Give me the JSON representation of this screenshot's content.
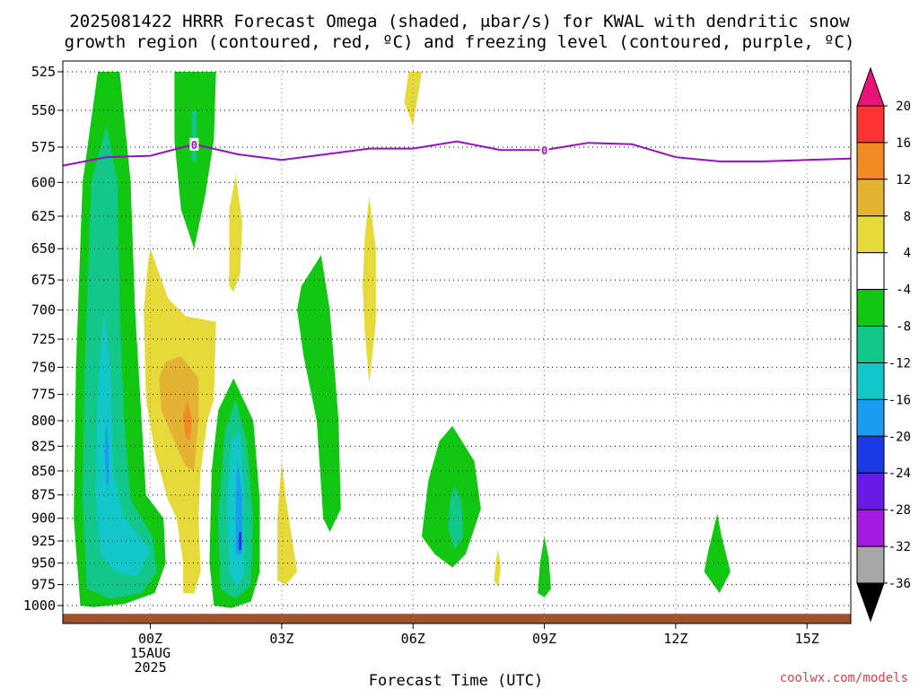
{
  "title": {
    "line1": "2025081422 HRRR Forecast Omega (shaded, μbar/s) for KWAL with dendritic snow",
    "line2": "growth region (contoured, red, ºC) and freezing level (contoured, purple, ºC)"
  },
  "credit": {
    "text": "coolwx.com/models",
    "color": "#d2434b"
  },
  "chart_data": {
    "type": "heatmap",
    "title": "2025081422 HRRR Forecast Omega (shaded, μbar/s) for KWAL with dendritic snow growth region (contoured, red, ºC) and freezing level (contoured, purple, ºC)",
    "xlabel": "Forecast Time (UTC)",
    "ylabel": "",
    "x_unit": "hours from 00Z 15AUG 2025",
    "xlim": [
      -2,
      16
    ],
    "ylim": [
      1000,
      525
    ],
    "y_scale": "log pressure (hPa)",
    "grid": true,
    "x_ticks": [
      {
        "value": 0,
        "label": "00Z",
        "sublabels": [
          "15AUG",
          "2025"
        ]
      },
      {
        "value": 3,
        "label": "03Z"
      },
      {
        "value": 6,
        "label": "06Z"
      },
      {
        "value": 9,
        "label": "09Z"
      },
      {
        "value": 12,
        "label": "12Z"
      },
      {
        "value": 15,
        "label": "15Z"
      }
    ],
    "y_ticks": [
      525,
      550,
      575,
      600,
      625,
      650,
      675,
      700,
      725,
      750,
      775,
      800,
      825,
      850,
      875,
      900,
      925,
      950,
      975,
      1000
    ],
    "colorbar": {
      "labels": [
        "20",
        "16",
        "12",
        "8",
        "4",
        "-4",
        "-8",
        "-12",
        "-16",
        "-20",
        "-24",
        "-28",
        "-32",
        "-36"
      ],
      "bands": [
        {
          "min": 16,
          "max": 20,
          "color": "#ff3333"
        },
        {
          "min": 12,
          "max": 16,
          "color": "#f08a22"
        },
        {
          "min": 8,
          "max": 12,
          "color": "#e4b232"
        },
        {
          "min": 4,
          "max": 8,
          "color": "#e6da3a"
        },
        {
          "min": -4,
          "max": 4,
          "color": "#ffffff"
        },
        {
          "min": -8,
          "max": -4,
          "color": "#11c711"
        },
        {
          "min": -12,
          "max": -8,
          "color": "#11c78a"
        },
        {
          "min": -16,
          "max": -12,
          "color": "#11c7c7"
        },
        {
          "min": -20,
          "max": -16,
          "color": "#1a9df0"
        },
        {
          "min": -24,
          "max": -20,
          "color": "#1a3ae6"
        },
        {
          "min": -28,
          "max": -24,
          "color": "#6a1ae6"
        },
        {
          "min": -32,
          "max": -28,
          "color": "#a31ae0"
        },
        {
          "min": -36,
          "max": -32,
          "color": "#a6a6a6"
        }
      ],
      "top_extend_color": "#e8147a",
      "bottom_extend_color": "#000000"
    },
    "freezing_level": {
      "color": "#9a0fc8",
      "label": "0",
      "label_points": [
        [
          1,
          573
        ],
        [
          9,
          577
        ]
      ],
      "points": [
        [
          -2,
          588
        ],
        [
          -1.5,
          585
        ],
        [
          -1,
          582
        ],
        [
          0,
          581
        ],
        [
          1,
          573
        ],
        [
          2,
          580
        ],
        [
          3,
          584
        ],
        [
          4,
          580
        ],
        [
          5,
          576
        ],
        [
          6,
          576
        ],
        [
          7,
          571
        ],
        [
          8,
          577
        ],
        [
          9,
          577
        ],
        [
          10,
          572
        ],
        [
          11,
          573
        ],
        [
          12,
          582
        ],
        [
          13,
          585
        ],
        [
          14,
          585
        ],
        [
          15,
          584
        ],
        [
          16,
          583
        ]
      ]
    },
    "ground": {
      "color": "#a0522d",
      "pressure_top": 1010
    },
    "omega_regions": [
      {
        "value": -6,
        "points": [
          [
            -1.6,
            1000
          ],
          [
            -1.75,
            900
          ],
          [
            -1.7,
            750
          ],
          [
            -1.55,
            600
          ],
          [
            -1.2,
            525
          ],
          [
            -0.7,
            525
          ],
          [
            -0.45,
            600
          ],
          [
            -0.35,
            700
          ],
          [
            -0.2,
            800
          ],
          [
            -0.1,
            875
          ],
          [
            0.3,
            900
          ],
          [
            0.35,
            950
          ],
          [
            0.1,
            985
          ],
          [
            -0.6,
            998
          ],
          [
            -1.3,
            1002
          ]
        ]
      },
      {
        "value": -10,
        "points": [
          [
            -1.45,
            980
          ],
          [
            -1.55,
            880
          ],
          [
            -1.5,
            750
          ],
          [
            -1.35,
            600
          ],
          [
            -1.0,
            560
          ],
          [
            -0.75,
            600
          ],
          [
            -0.7,
            700
          ],
          [
            -0.6,
            800
          ],
          [
            -0.45,
            880
          ],
          [
            0.05,
            920
          ],
          [
            0.15,
            960
          ],
          [
            -0.2,
            985
          ],
          [
            -0.9,
            992
          ]
        ]
      },
      {
        "value": -14,
        "points": [
          [
            -1.15,
            940
          ],
          [
            -1.25,
            880
          ],
          [
            -1.2,
            760
          ],
          [
            -1.05,
            700
          ],
          [
            -0.9,
            760
          ],
          [
            -0.85,
            850
          ],
          [
            -0.6,
            900
          ],
          [
            0.0,
            935
          ],
          [
            -0.3,
            965
          ],
          [
            -0.8,
            960
          ]
        ]
      },
      {
        "value": -18,
        "points": [
          [
            -1.0,
            865
          ],
          [
            -1.05,
            830
          ],
          [
            -1.0,
            800
          ],
          [
            -0.95,
            830
          ],
          [
            -0.95,
            865
          ]
        ]
      },
      {
        "value": -6,
        "points": [
          [
            0.55,
            525
          ],
          [
            1.5,
            525
          ],
          [
            1.45,
            570
          ],
          [
            1.25,
            610
          ],
          [
            1.0,
            650
          ],
          [
            0.7,
            620
          ],
          [
            0.55,
            570
          ]
        ]
      },
      {
        "value": -10,
        "points": [
          [
            0.95,
            550
          ],
          [
            1.05,
            550
          ],
          [
            1.05,
            585
          ],
          [
            0.95,
            585
          ]
        ]
      },
      {
        "value": -6,
        "points": [
          [
            1.45,
            1000
          ],
          [
            1.35,
            950
          ],
          [
            1.4,
            850
          ],
          [
            1.55,
            790
          ],
          [
            1.9,
            760
          ],
          [
            2.35,
            800
          ],
          [
            2.5,
            880
          ],
          [
            2.5,
            960
          ],
          [
            2.3,
            995
          ],
          [
            1.85,
            1003
          ]
        ]
      },
      {
        "value": -10,
        "points": [
          [
            1.6,
            980
          ],
          [
            1.55,
            900
          ],
          [
            1.7,
            810
          ],
          [
            1.95,
            780
          ],
          [
            2.2,
            820
          ],
          [
            2.35,
            900
          ],
          [
            2.3,
            975
          ],
          [
            1.95,
            992
          ]
        ]
      },
      {
        "value": -14,
        "points": [
          [
            1.8,
            960
          ],
          [
            1.75,
            880
          ],
          [
            1.85,
            820
          ],
          [
            2.05,
            810
          ],
          [
            2.15,
            880
          ],
          [
            2.15,
            960
          ],
          [
            2.0,
            980
          ]
        ]
      },
      {
        "value": -18,
        "points": [
          [
            1.95,
            940
          ],
          [
            1.95,
            870
          ],
          [
            2.0,
            840
          ],
          [
            2.1,
            880
          ],
          [
            2.1,
            940
          ]
        ]
      },
      {
        "value": -22,
        "points": [
          [
            2.02,
            935
          ],
          [
            2.02,
            915
          ],
          [
            2.08,
            915
          ],
          [
            2.08,
            935
          ]
        ]
      },
      {
        "value": -6,
        "points": [
          [
            3.35,
            700
          ],
          [
            3.45,
            680
          ],
          [
            3.9,
            655
          ],
          [
            4.1,
            700
          ],
          [
            4.3,
            800
          ],
          [
            4.35,
            890
          ],
          [
            4.1,
            915
          ],
          [
            3.95,
            900
          ],
          [
            3.8,
            800
          ],
          [
            3.5,
            740
          ]
        ]
      },
      {
        "value": -6,
        "points": [
          [
            6.2,
            920
          ],
          [
            6.35,
            860
          ],
          [
            6.6,
            820
          ],
          [
            6.9,
            805
          ],
          [
            7.4,
            840
          ],
          [
            7.55,
            890
          ],
          [
            7.2,
            940
          ],
          [
            6.9,
            955
          ],
          [
            6.5,
            940
          ]
        ]
      },
      {
        "value": -10,
        "points": [
          [
            6.8,
            910
          ],
          [
            6.85,
            880
          ],
          [
            6.95,
            865
          ],
          [
            7.1,
            880
          ],
          [
            7.15,
            920
          ],
          [
            6.95,
            935
          ]
        ]
      },
      {
        "value": -6,
        "points": [
          [
            8.85,
            985
          ],
          [
            8.9,
            950
          ],
          [
            9.0,
            920
          ],
          [
            9.1,
            945
          ],
          [
            9.15,
            980
          ],
          [
            9.0,
            990
          ]
        ]
      },
      {
        "value": -6,
        "points": [
          [
            12.65,
            960
          ],
          [
            12.75,
            935
          ],
          [
            12.95,
            895
          ],
          [
            13.05,
            920
          ],
          [
            13.25,
            960
          ],
          [
            13.0,
            985
          ]
        ]
      },
      {
        "value": 6,
        "points": [
          [
            -0.15,
            700
          ],
          [
            -0.05,
            660
          ],
          [
            0.0,
            650
          ],
          [
            0.4,
            690
          ],
          [
            0.8,
            705
          ],
          [
            1.5,
            710
          ],
          [
            1.45,
            780
          ],
          [
            1.3,
            800
          ],
          [
            1.15,
            850
          ],
          [
            1.1,
            900
          ],
          [
            1.15,
            960
          ],
          [
            1.0,
            985
          ],
          [
            0.75,
            985
          ],
          [
            0.75,
            950
          ],
          [
            0.6,
            900
          ],
          [
            0.4,
            880
          ],
          [
            0.1,
            830
          ],
          [
            -0.1,
            780
          ]
        ]
      },
      {
        "value": 10,
        "points": [
          [
            0.2,
            760
          ],
          [
            0.35,
            745
          ],
          [
            0.7,
            740
          ],
          [
            1.1,
            760
          ],
          [
            1.1,
            800
          ],
          [
            1.0,
            850
          ],
          [
            0.8,
            845
          ],
          [
            0.45,
            810
          ],
          [
            0.25,
            790
          ]
        ]
      },
      {
        "value": 14,
        "points": [
          [
            0.75,
            795
          ],
          [
            0.85,
            780
          ],
          [
            0.95,
            800
          ],
          [
            0.9,
            820
          ],
          [
            0.8,
            815
          ]
        ]
      },
      {
        "value": 6,
        "points": [
          [
            5.9,
            525
          ],
          [
            6.2,
            525
          ],
          [
            6.0,
            560
          ],
          [
            5.8,
            545
          ]
        ]
      },
      {
        "value": 6,
        "points": [
          [
            1.8,
            680
          ],
          [
            1.8,
            620
          ],
          [
            1.95,
            595
          ],
          [
            2.1,
            630
          ],
          [
            2.05,
            670
          ],
          [
            1.9,
            685
          ]
        ]
      },
      {
        "value": 6,
        "points": [
          [
            4.85,
            680
          ],
          [
            4.9,
            640
          ],
          [
            5.0,
            610
          ],
          [
            5.15,
            650
          ],
          [
            5.15,
            710
          ],
          [
            5.0,
            765
          ],
          [
            4.9,
            720
          ]
        ]
      },
      {
        "value": 6,
        "points": [
          [
            2.9,
            970
          ],
          [
            2.9,
            900
          ],
          [
            3.0,
            840
          ],
          [
            3.1,
            880
          ],
          [
            3.35,
            960
          ],
          [
            3.1,
            975
          ]
        ]
      },
      {
        "value": 6,
        "points": [
          [
            7.85,
            970
          ],
          [
            7.9,
            945
          ],
          [
            7.95,
            935
          ],
          [
            8.0,
            955
          ],
          [
            7.95,
            978
          ]
        ]
      }
    ]
  }
}
